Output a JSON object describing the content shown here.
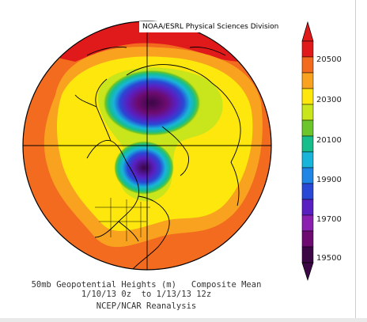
{
  "credit": "NOAA/ESRL Physical Sciences Division",
  "caption": {
    "line1": "50mb Geopotential Heights (m)   Composite Mean",
    "line2": "1/10/13 0z  to 1/13/13 12z",
    "line3": "NCEP/NCAR Reanalysis"
  },
  "colorbar": {
    "labels": [
      "20500",
      "20300",
      "20100",
      "19900",
      "19700",
      "19500"
    ],
    "colors": [
      "#e01a1a",
      "#f26b1f",
      "#f9a21f",
      "#fde70d",
      "#c9e51b",
      "#6cc52a",
      "#17be8c",
      "#18b4da",
      "#1f86e6",
      "#2a48d6",
      "#5a1fc0",
      "#8a1fb0",
      "#6d0b70",
      "#3b0745"
    ]
  },
  "icons": {
    "map": "north-polar-stereographic-map-icon"
  }
}
